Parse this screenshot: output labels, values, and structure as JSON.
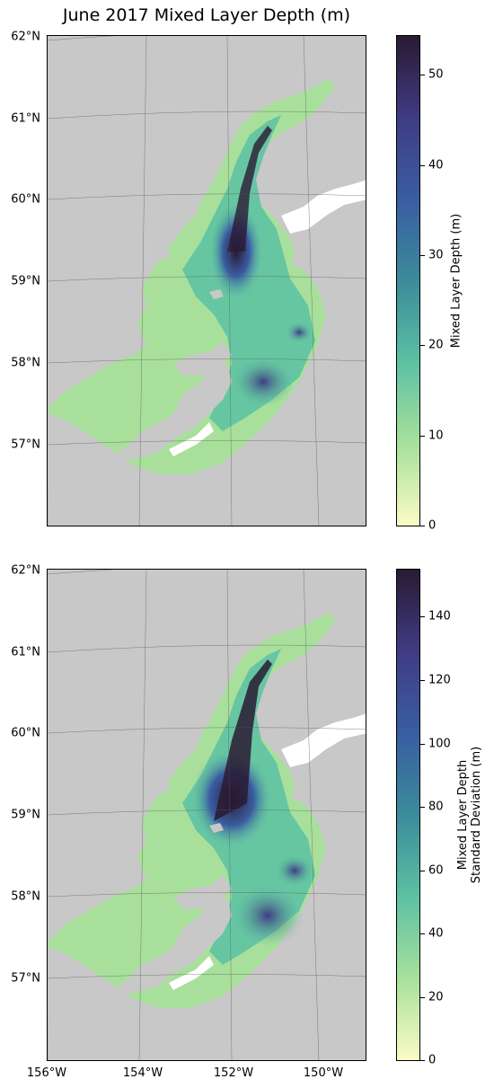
{
  "title": "June 2017 Mixed Layer Depth (m)",
  "latitude_labels": [
    "62°N",
    "61°N",
    "60°N",
    "59°N",
    "58°N",
    "57°N"
  ],
  "longitude_labels": [
    "156°W",
    "154°W",
    "152°W",
    "150°W"
  ],
  "colors": {
    "land": "#c8c8c8",
    "island": "#ffffff",
    "colormap": [
      "#fbfbc6",
      "#a8e09b",
      "#5cc1a3",
      "#3b8b9a",
      "#3a5da2",
      "#3f3c83",
      "#2a1a33"
    ]
  },
  "panels": [
    {
      "colorbar_label": "Mixed Layer Depth (m)",
      "colorbar_range": [
        0,
        54
      ],
      "colorbar_ticks": [
        "50",
        "40",
        "30",
        "20",
        "10",
        "0"
      ]
    },
    {
      "colorbar_label_line1": "Mixed Layer Depth",
      "colorbar_label_line2": "Standard Deviation (m)",
      "colorbar_range": [
        0,
        155
      ],
      "colorbar_ticks": [
        "140",
        "120",
        "100",
        "80",
        "60",
        "40",
        "20",
        "0"
      ]
    }
  ]
}
